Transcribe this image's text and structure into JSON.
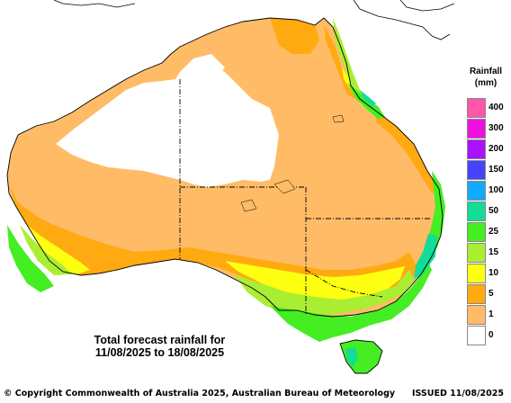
{
  "legend": {
    "title": "Rainfall",
    "units": "(mm)",
    "items": [
      {
        "label": "400",
        "color": "#ff55aa"
      },
      {
        "label": "300",
        "color": "#ee11dd"
      },
      {
        "label": "200",
        "color": "#aa11ff"
      },
      {
        "label": "150",
        "color": "#4444ff"
      },
      {
        "label": "100",
        "color": "#11aaff"
      },
      {
        "label": "50",
        "color": "#11dd99"
      },
      {
        "label": "25",
        "color": "#44ee22"
      },
      {
        "label": "15",
        "color": "#aaee33"
      },
      {
        "label": "10",
        "color": "#ffff11"
      },
      {
        "label": "5",
        "color": "#ffaa11"
      },
      {
        "label": "1",
        "color": "#ffbb66"
      },
      {
        "label": "0",
        "color": "#ffffff"
      }
    ]
  },
  "caption": {
    "line1": "Total forecast rainfall for",
    "line2": "11/08/2025 to 18/08/2025"
  },
  "footer": {
    "copyright": "© Copyright Commonwealth of Australia 2025, Australian Bureau of Meteorology",
    "issued": "ISSUED 11/08/2025"
  }
}
